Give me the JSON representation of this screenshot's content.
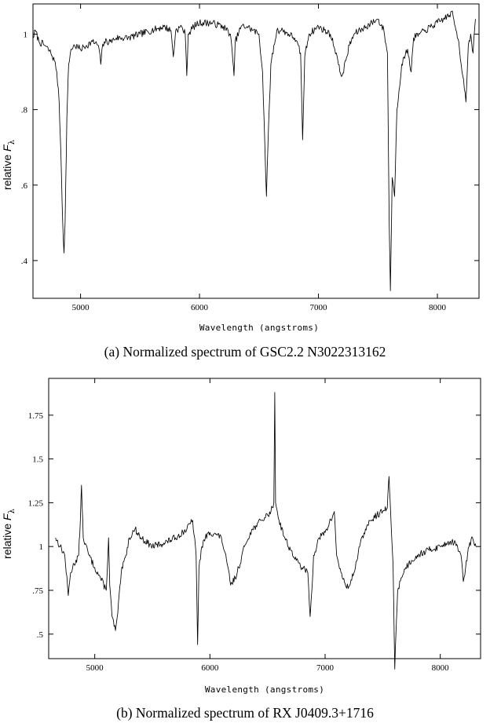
{
  "chart_data": [
    {
      "type": "line",
      "ylabel_main": "relative ",
      "ylabel_symbol": "F",
      "ylabel_subscript": "λ",
      "xlabel": "Wavelength (angstroms)",
      "caption": "(a) Normalized spectrum of GSC2.2 N3022313162",
      "xlim": [
        4600,
        8350
      ],
      "ylim": [
        0.3,
        1.08
      ],
      "xticks": [
        5000,
        6000,
        7000,
        8000
      ],
      "xtick_labels": [
        "5000",
        "6000",
        "7000",
        "8000"
      ],
      "yticks": [
        0.4,
        0.6,
        0.8,
        1.0
      ],
      "ytick_labels": [
        ".4",
        ".6",
        ".8",
        "1"
      ],
      "series": [
        {
          "x": [
            4600,
            4620,
            4650,
            4700,
            4750,
            4780,
            4800,
            4820,
            4835,
            4850,
            4861,
            4870,
            4885,
            4900,
            4920,
            4950,
            5000,
            5050,
            5100,
            5150,
            5170,
            5180,
            5200,
            5250,
            5300,
            5400,
            5500,
            5600,
            5700,
            5760,
            5780,
            5800,
            5850,
            5880,
            5893,
            5905,
            5950,
            6000,
            6100,
            6200,
            6260,
            6280,
            6290,
            6300,
            6350,
            6400,
            6450,
            6500,
            6530,
            6550,
            6563,
            6575,
            6600,
            6650,
            6700,
            6750,
            6800,
            6850,
            6867,
            6885,
            6920,
            7000,
            7050,
            7100,
            7150,
            7180,
            7200,
            7230,
            7260,
            7300,
            7350,
            7400,
            7450,
            7500,
            7550,
            7580,
            7595,
            7605,
            7620,
            7640,
            7660,
            7700,
            7750,
            7780,
            7800,
            7850,
            7900,
            8000,
            8050,
            8100,
            8120,
            8150,
            8180,
            8200,
            8220,
            8240,
            8260,
            8280,
            8300,
            8320
          ],
          "y": [
            0.99,
            1.01,
            0.98,
            0.97,
            0.95,
            0.93,
            0.9,
            0.82,
            0.68,
            0.5,
            0.42,
            0.5,
            0.78,
            0.92,
            0.96,
            0.97,
            0.96,
            0.97,
            0.98,
            0.97,
            0.92,
            0.96,
            0.98,
            0.98,
            0.99,
            0.99,
            1.0,
            1.01,
            1.02,
            1.01,
            0.94,
            1.01,
            1.02,
            1.0,
            0.89,
            1.0,
            1.02,
            1.03,
            1.03,
            1.02,
            1.0,
            0.93,
            0.89,
            0.98,
            1.02,
            1.02,
            1.01,
            1.0,
            0.9,
            0.7,
            0.57,
            0.7,
            0.92,
            1.01,
            1.01,
            1.0,
            0.99,
            0.95,
            0.72,
            0.94,
            1.0,
            1.02,
            1.01,
            1.0,
            0.95,
            0.9,
            0.89,
            0.93,
            0.97,
            1.0,
            1.01,
            1.02,
            1.03,
            1.04,
            1.01,
            0.95,
            0.5,
            0.32,
            0.62,
            0.57,
            0.8,
            0.92,
            0.96,
            0.9,
            0.99,
            1.0,
            1.01,
            1.03,
            1.04,
            1.05,
            1.06,
            1.02,
            0.98,
            0.92,
            0.88,
            0.82,
            0.97,
            1.0,
            0.95,
            1.04
          ]
        }
      ]
    },
    {
      "type": "line",
      "ylabel_main": "relative ",
      "ylabel_symbol": "F",
      "ylabel_subscript": "λ",
      "xlabel": "Wavelength (angstroms)",
      "caption": "(b) Normalized spectrum of RX J0409.3+1716",
      "xlim": [
        4600,
        8350
      ],
      "ylim": [
        0.36,
        1.96
      ],
      "xticks": [
        5000,
        6000,
        7000,
        8000
      ],
      "xtick_labels": [
        "5000",
        "6000",
        "7000",
        "8000"
      ],
      "yticks": [
        0.5,
        0.75,
        1.0,
        1.25,
        1.5,
        1.75
      ],
      "ytick_labels": [
        ".5",
        ".75",
        "1",
        "1.25",
        "1.5",
        "1.75"
      ],
      "series": [
        {
          "x": [
            4660,
            4700,
            4740,
            4770,
            4790,
            4820,
            4860,
            4875,
            4885,
            4900,
            4950,
            5000,
            5050,
            5100,
            5120,
            5130,
            5150,
            5180,
            5200,
            5230,
            5270,
            5300,
            5350,
            5400,
            5500,
            5600,
            5700,
            5800,
            5850,
            5880,
            5893,
            5905,
            5930,
            5960,
            6000,
            6050,
            6100,
            6150,
            6180,
            6220,
            6250,
            6300,
            6350,
            6400,
            6450,
            6500,
            6530,
            6555,
            6563,
            6570,
            6600,
            6650,
            6700,
            6750,
            6800,
            6850,
            6870,
            6885,
            6900,
            6950,
            7000,
            7050,
            7080,
            7100,
            7150,
            7200,
            7250,
            7300,
            7350,
            7400,
            7450,
            7500,
            7540,
            7555,
            7570,
            7590,
            7605,
            7615,
            7630,
            7660,
            7700,
            7750,
            7800,
            7900,
            8000,
            8050,
            8100,
            8150,
            8180,
            8200,
            8220,
            8250,
            8280,
            8310
          ],
          "y": [
            1.05,
            1.0,
            0.95,
            0.72,
            0.85,
            0.9,
            0.95,
            1.15,
            1.35,
            1.05,
            0.95,
            0.88,
            0.82,
            0.75,
            1.05,
            0.78,
            0.6,
            0.52,
            0.62,
            0.85,
            0.95,
            1.05,
            1.1,
            1.05,
            1.0,
            1.02,
            1.05,
            1.1,
            1.15,
            0.95,
            0.44,
            0.88,
            1.0,
            1.05,
            1.08,
            1.07,
            1.05,
            0.9,
            0.78,
            0.82,
            0.88,
            1.0,
            1.08,
            1.12,
            1.15,
            1.18,
            1.2,
            1.25,
            1.88,
            1.25,
            1.15,
            1.05,
            0.98,
            0.92,
            0.88,
            0.85,
            0.6,
            0.75,
            0.95,
            1.05,
            1.08,
            1.15,
            1.2,
            0.95,
            0.82,
            0.76,
            0.85,
            1.0,
            1.1,
            1.15,
            1.18,
            1.2,
            1.22,
            1.4,
            1.18,
            0.9,
            0.3,
            0.5,
            0.75,
            0.82,
            0.88,
            0.92,
            0.95,
            0.98,
            1.0,
            1.02,
            1.03,
            1.0,
            0.95,
            0.8,
            0.88,
            1.0,
            1.05,
            1.0
          ]
        }
      ]
    }
  ]
}
